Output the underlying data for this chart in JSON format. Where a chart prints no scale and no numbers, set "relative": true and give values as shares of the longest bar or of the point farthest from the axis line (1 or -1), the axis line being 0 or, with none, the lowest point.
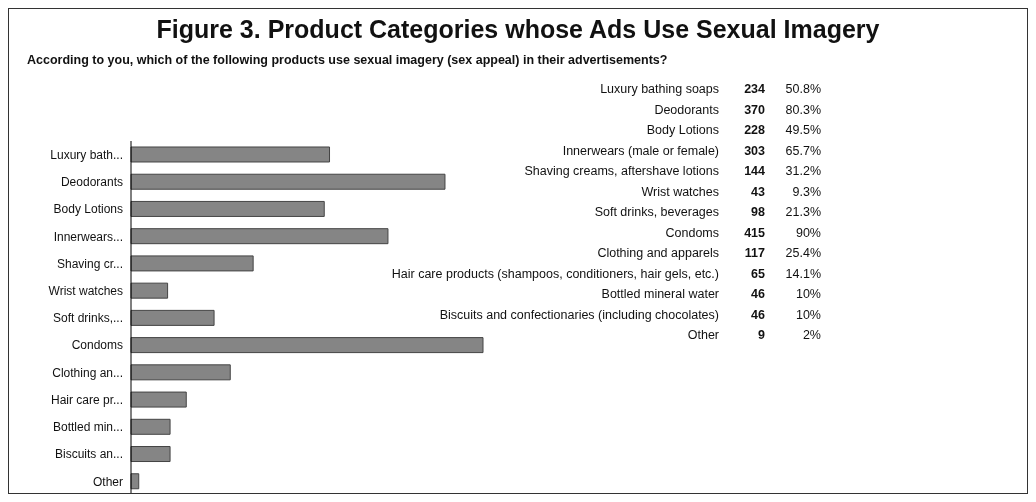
{
  "chart_data": [
    {
      "type": "bar",
      "orientation": "horizontal",
      "relative": true,
      "title": "Figure 3. Product Categories whose Ads Use Sexual Imagery",
      "subtitle": "According to you, which of the following products use sexual imagery (sex appeal) in their advertisements?",
      "categories": [
        "Luxury bath...",
        "Deodorants",
        "Body Lotions",
        "Innerwears...",
        "Shaving cr...",
        "Wrist watches",
        "Soft drinks,...",
        "Condoms",
        "Clothing an...",
        "Hair care pr...",
        "Bottled min...",
        "Biscuits an...",
        "Other"
      ],
      "values": [
        0.564,
        0.892,
        0.549,
        0.73,
        0.347,
        0.104,
        0.236,
        1,
        0.282,
        0.157,
        0.111,
        0.111,
        0.022
      ],
      "color": "#858585",
      "grid": false,
      "legend": false
    },
    {
      "type": "other",
      "categories": [
        "Luxury bathing soaps",
        "Deodorants",
        "Body Lotions",
        "Innerwears (male or female)",
        "Shaving creams, aftershave lotions",
        "Wrist watches",
        "Soft drinks, beverages",
        "Condoms",
        "Clothing and apparels",
        "Hair care products (shampoos, conditioners, hair gels, etc.)",
        "Bottled mineral water",
        "Biscuits and confectionaries (including chocolates)",
        "Other"
      ],
      "series": [
        {
          "values": [
            234,
            370,
            228,
            303,
            144,
            43,
            98,
            415,
            117,
            65,
            46,
            46,
            9
          ]
        },
        {
          "values": [
            50.8,
            80.3,
            49.5,
            65.7,
            31.2,
            9.3,
            21.3,
            90,
            25.4,
            14.1,
            10,
            10,
            2
          ],
          "value_labels": [
            "50.8%",
            "80.3%",
            "49.5%",
            "65.7%",
            "31.2%",
            "9.3%",
            "21.3%",
            "90%",
            "25.4%",
            "14.1%",
            "10%",
            "10%",
            "2%"
          ]
        }
      ],
      "data_labels": true
    }
  ]
}
